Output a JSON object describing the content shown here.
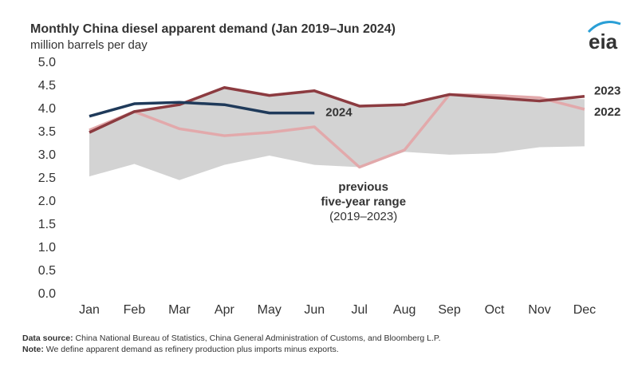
{
  "chart_data": {
    "type": "line",
    "title": "Monthly China diesel apparent demand (Jan 2019–Jun 2024)",
    "subtitle": "million barrels per day",
    "logo": "eia",
    "categories": [
      "Jan",
      "Feb",
      "Mar",
      "Apr",
      "May",
      "Jun",
      "Jul",
      "Aug",
      "Sep",
      "Oct",
      "Nov",
      "Dec"
    ],
    "ylim": [
      0,
      5
    ],
    "yticks": [
      {
        "value": 0,
        "label": "0.0"
      },
      0.5,
      {
        "value": 1,
        "label": "1.0"
      },
      1.5,
      {
        "value": 2,
        "label": "2.0"
      },
      2.5,
      {
        "value": 3,
        "label": "3.0"
      },
      3.5,
      {
        "value": 4,
        "label": "4.0"
      },
      4.5,
      {
        "value": 5,
        "label": "5.0"
      }
    ],
    "range": {
      "color": "#d3d3d3",
      "upper": [
        3.55,
        3.95,
        4.1,
        4.45,
        4.3,
        4.4,
        4.08,
        4.1,
        4.32,
        4.3,
        4.25,
        4.22
      ],
      "lower": [
        2.55,
        2.82,
        2.47,
        2.8,
        3.0,
        2.8,
        2.75,
        3.08,
        3.02,
        3.05,
        3.18,
        3.2
      ],
      "annotation": [
        "previous",
        "five-year range",
        "(2019–2023)"
      ]
    },
    "series": [
      {
        "name": "2022",
        "color": "#e2a9ab",
        "values": [
          3.55,
          3.95,
          3.58,
          3.43,
          3.5,
          3.62,
          2.75,
          3.12,
          4.32,
          4.3,
          4.25,
          4.0
        ]
      },
      {
        "name": "2023",
        "color": "#8c3b40",
        "values": [
          3.5,
          3.95,
          4.1,
          4.47,
          4.3,
          4.4,
          4.07,
          4.1,
          4.32,
          4.25,
          4.18,
          4.28
        ]
      },
      {
        "name": "2024",
        "color": "#1f3a5a",
        "values": [
          3.85,
          4.12,
          4.15,
          4.1,
          3.92,
          3.92,
          null,
          null,
          null,
          null,
          null,
          null
        ]
      }
    ],
    "notes": [
      {
        "label": "Data source:",
        "text": " China National Bureau of Statistics, China General Administration of Customs, and Bloomberg L.P."
      },
      {
        "label": "Note:",
        "text": " We define apparent demand as refinery production plus imports minus exports."
      }
    ]
  }
}
